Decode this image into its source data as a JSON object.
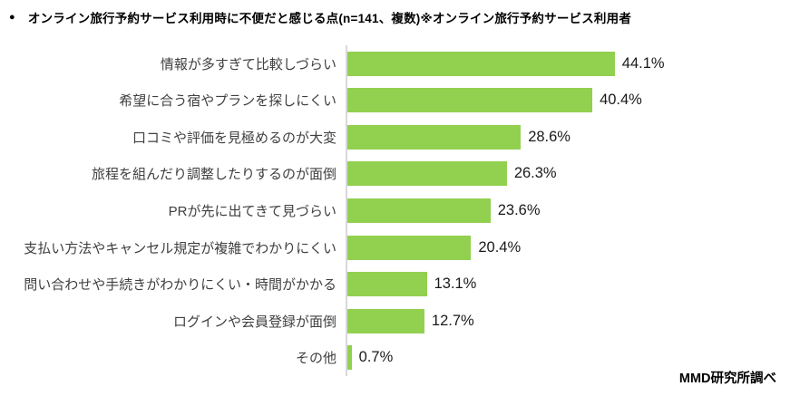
{
  "title": {
    "bullet": "●",
    "text": "オンライン旅行予約サービス利用時に不便だと感じる点(n=141、複数)※オンライン旅行予約サービス利用者"
  },
  "source": "MMD研究所調べ",
  "chart_data": {
    "type": "bar",
    "orientation": "horizontal",
    "title": "オンライン旅行予約サービス利用時に不便だと感じる点(n=141、複数)※オンライン旅行予約サービス利用者",
    "sample_note": "n=141、複数",
    "categories": [
      "情報が多すぎて比較しづらい",
      "希望に合う宿やプランを探しにくい",
      "口コミや評価を見極めるのが大変",
      "旅程を組んだり調整したりするのが面倒",
      "PRが先に出てきて見づらい",
      "支払い方法やキャンセル規定が複雑でわかりにくい",
      "問い合わせや手続きがわかりにくい・時間がかかる",
      "ログインや会員登録が面倒",
      "その他"
    ],
    "values": [
      44.1,
      40.4,
      28.6,
      26.3,
      23.6,
      20.4,
      13.1,
      12.7,
      0.7
    ],
    "value_labels": [
      "44.1%",
      "40.4%",
      "28.6%",
      "26.3%",
      "23.6%",
      "20.4%",
      "13.1%",
      "12.7%",
      "0.7%"
    ],
    "xlabel": "",
    "ylabel": "",
    "xlim": [
      0,
      73
    ],
    "grid": false,
    "legend": false,
    "bar_color": "#92D050",
    "axis_color": "#D9D9D9"
  }
}
